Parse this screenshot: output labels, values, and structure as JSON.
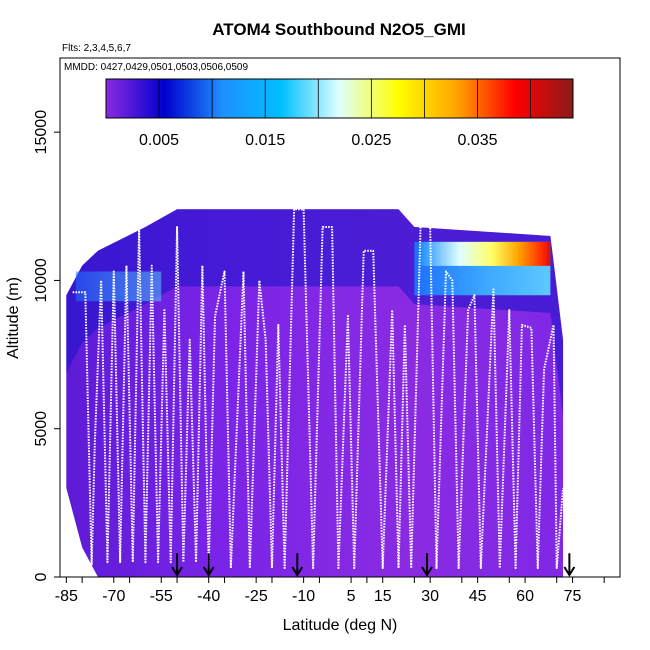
{
  "chart_data": {
    "type": "heatmap",
    "title": "ATOM4 Southbound N2O5_GMI",
    "annotations": {
      "flights": "Flts: 2,3,4,5,6,7",
      "dates": "MMDD: 0427,0429,0501,0503,0506,0509"
    },
    "xlabel": "Latitude (deg N)",
    "ylabel": "Altitude (m)",
    "xlim": [
      -87,
      90
    ],
    "ylim": [
      0,
      17500
    ],
    "x_ticks": [
      -85,
      -70,
      -55,
      -40,
      -25,
      -10,
      5,
      15,
      30,
      45,
      60,
      75
    ],
    "x_ticks_unlabeled": [
      -80,
      -65,
      -50,
      -35,
      -20,
      -5,
      10,
      25,
      40,
      55,
      70,
      85
    ],
    "y_ticks": [
      0,
      5000,
      10000,
      15000
    ],
    "colorbar": {
      "min": 0,
      "max": 0.044,
      "ticks": [
        0.005,
        0.015,
        0.025,
        0.035
      ],
      "colors": [
        "#8a2be2",
        "#0000cd",
        "#1e90ff",
        "#00bfff",
        "#e0ffff",
        "#ffff00",
        "#ffa500",
        "#ff0000",
        "#8b1a1a"
      ]
    },
    "data_coverage": [
      {
        "lat": -85,
        "alt_bottom": 3000,
        "alt_top": 9500
      },
      {
        "lat": -80,
        "alt_bottom": 1000,
        "alt_top": 10500
      },
      {
        "lat": -75,
        "alt_bottom": 0,
        "alt_top": 11000
      },
      {
        "lat": -60,
        "alt_bottom": 0,
        "alt_top": 11800
      },
      {
        "lat": -50,
        "alt_bottom": 0,
        "alt_top": 12400
      },
      {
        "lat": 20,
        "alt_bottom": 0,
        "alt_top": 12400
      },
      {
        "lat": 25,
        "alt_bottom": 0,
        "alt_top": 11800
      },
      {
        "lat": 68,
        "alt_bottom": 0,
        "alt_top": 11500
      },
      {
        "lat": 72,
        "alt_bottom": 0,
        "alt_top": 8000
      }
    ],
    "high_value_region": {
      "lat_start": 25,
      "lat_end": 68,
      "alt_bottom": 9500,
      "alt_top": 11300,
      "peak_value": 0.04,
      "peak_lat": 66
    },
    "flight_track": [
      [
        -83,
        9600
      ],
      [
        -79,
        9600
      ],
      [
        -77,
        400
      ],
      [
        -76,
        4500
      ],
      [
        -74,
        10000
      ],
      [
        -72,
        500
      ],
      [
        -70,
        10300
      ],
      [
        -68,
        500
      ],
      [
        -66,
        10500
      ],
      [
        -64,
        500
      ],
      [
        -62,
        11800
      ],
      [
        -60,
        500
      ],
      [
        -58,
        10500
      ],
      [
        -56,
        500
      ],
      [
        -54,
        9000
      ],
      [
        -52,
        500
      ],
      [
        -50,
        11800
      ],
      [
        -48,
        500
      ],
      [
        -46,
        8000
      ],
      [
        -44,
        500
      ],
      [
        -42,
        10500
      ],
      [
        -40,
        300
      ],
      [
        -38,
        8800
      ],
      [
        -35,
        10300
      ],
      [
        -33,
        300
      ],
      [
        -29,
        10300
      ],
      [
        -27,
        300
      ],
      [
        -24,
        10000
      ],
      [
        -22,
        8000
      ],
      [
        -20,
        300
      ],
      [
        -18,
        8500
      ],
      [
        -16,
        300
      ],
      [
        -13,
        12400
      ],
      [
        -10,
        12400
      ],
      [
        -7,
        300
      ],
      [
        -4,
        11800
      ],
      [
        -1,
        11800
      ],
      [
        1,
        300
      ],
      [
        4,
        8800
      ],
      [
        6,
        300
      ],
      [
        9,
        11000
      ],
      [
        12,
        11000
      ],
      [
        15,
        300
      ],
      [
        18,
        9000
      ],
      [
        20,
        300
      ],
      [
        22,
        8500
      ],
      [
        24,
        300
      ],
      [
        27,
        12000
      ],
      [
        30,
        11800
      ],
      [
        32,
        300
      ],
      [
        35,
        10300
      ],
      [
        37,
        10000
      ],
      [
        39,
        300
      ],
      [
        42,
        9000
      ],
      [
        44,
        9500
      ],
      [
        46,
        300
      ],
      [
        50,
        9700
      ],
      [
        52,
        300
      ],
      [
        55,
        9000
      ],
      [
        57,
        300
      ],
      [
        59,
        8500
      ],
      [
        62,
        8400
      ],
      [
        64,
        300
      ],
      [
        66,
        7000
      ],
      [
        69,
        8500
      ],
      [
        70,
        300
      ],
      [
        72,
        3000
      ]
    ],
    "arrows_lat": [
      -50,
      -40,
      -12,
      29,
      74
    ]
  }
}
